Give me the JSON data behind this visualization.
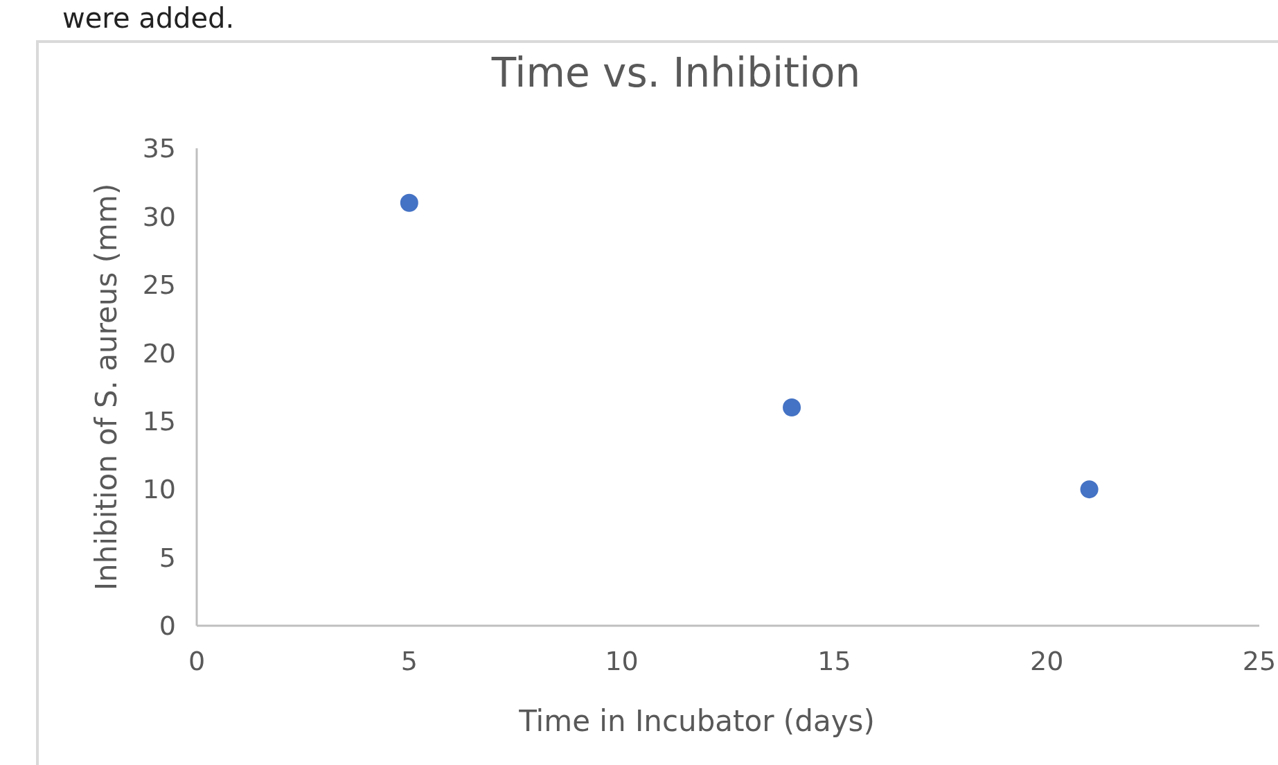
{
  "chart_data": {
    "type": "scatter",
    "title": "Time vs. Inhibition",
    "xlabel": "Time in Incubator (days)",
    "ylabel": "Inhibition of S. aureus (mm)",
    "annotations": [
      "were added."
    ],
    "x": [
      5,
      14,
      21
    ],
    "values": [
      31,
      16,
      10
    ],
    "color": "#4472c4",
    "marker": "circle",
    "xlim": [
      0,
      25
    ],
    "xticks": [
      0,
      5,
      10,
      15,
      20,
      25
    ],
    "ylim": [
      0,
      35
    ],
    "yticks": [
      0,
      5,
      10,
      15,
      20,
      25,
      30,
      35
    ]
  }
}
